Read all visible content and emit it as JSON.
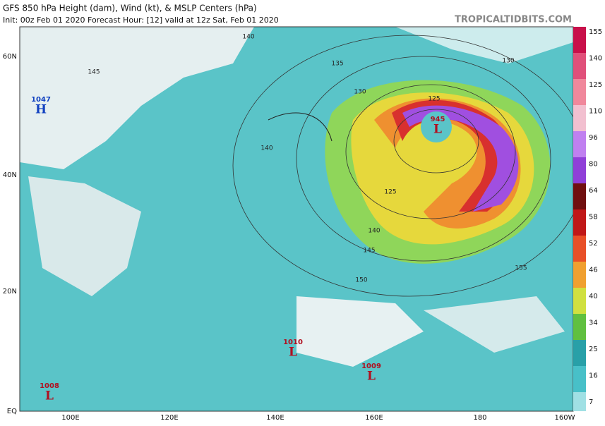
{
  "header": {
    "title": "GFS 850 hPa Height (dam), Wind (kt), & MSLP Centers (hPa)",
    "subtitle": "Init: 00z Feb 01 2020   Forecast Hour: [12]   valid at 12z Sat, Feb 01 2020",
    "source": "TROPICALTIDBITS.COM"
  },
  "map": {
    "lat_labels": [
      "60N",
      "40N",
      "20N",
      "EQ"
    ],
    "lon_labels": [
      "100E",
      "120E",
      "140E",
      "160E",
      "180",
      "160W"
    ],
    "centers": [
      {
        "letter": "H",
        "value": "1047"
      },
      {
        "letter": "L",
        "value": "1008"
      },
      {
        "letter": "L",
        "value": "1010"
      },
      {
        "letter": "L",
        "value": "1009"
      },
      {
        "letter": "L",
        "value": "945"
      }
    ],
    "contour_labels": [
      "140",
      "145",
      "135",
      "130",
      "125",
      "140",
      "125",
      "140",
      "145",
      "150",
      "155",
      "130"
    ]
  },
  "colorbar": {
    "ticks": [
      "155",
      "140",
      "125",
      "110",
      "96",
      "80",
      "64",
      "58",
      "52",
      "46",
      "40",
      "34",
      "25",
      "16",
      "7"
    ]
  }
}
